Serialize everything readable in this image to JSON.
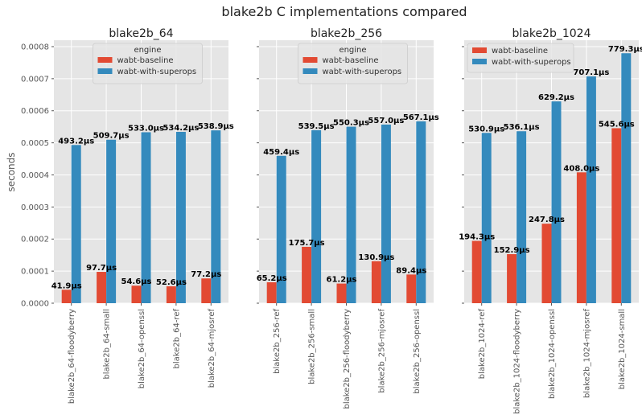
{
  "figure": {
    "suptitle": "blake2b C implementations compared",
    "ylabel": "seconds",
    "colors": {
      "wabt-baseline": "#E24A33",
      "wabt-with-superops": "#348ABD",
      "bg": "#E5E5E5",
      "grid": "#FFFFFF"
    }
  },
  "chart_data": [
    {
      "type": "bar",
      "title": "blake2b_64",
      "ylim": [
        0,
        0.00082
      ],
      "yticks": [
        "0.0000",
        "0.0001",
        "0.0002",
        "0.0003",
        "0.0004",
        "0.0005",
        "0.0006",
        "0.0007",
        "0.0008"
      ],
      "legend": {
        "title": "engine",
        "placement": "top-center"
      },
      "categories": [
        "blake2b_64-floodyberry",
        "blake2b_64-small",
        "blake2b_64-openssl",
        "blake2b_64-ref",
        "blake2b_64-mjosref"
      ],
      "series": [
        {
          "name": "wabt-baseline",
          "values": [
            4.19e-05,
            9.77e-05,
            5.46e-05,
            5.26e-05,
            7.72e-05
          ],
          "labels": [
            "41.9µs",
            "97.7µs",
            "54.6µs",
            "52.6µs",
            "77.2µs"
          ]
        },
        {
          "name": "wabt-with-superops",
          "values": [
            0.0004932,
            0.0005097,
            0.000533,
            0.0005342,
            0.0005389
          ],
          "labels": [
            "493.2µs",
            "509.7µs",
            "533.0µs",
            "534.2µs",
            "538.9µs"
          ]
        }
      ],
      "grid": true
    },
    {
      "type": "bar",
      "title": "blake2b_256",
      "ylim": [
        0,
        0.00082
      ],
      "legend": {
        "title": "engine",
        "placement": "top-center"
      },
      "categories": [
        "blake2b_256-ref",
        "blake2b_256-small",
        "blake2b_256-floodyberry",
        "blake2b_256-mjosref",
        "blake2b_256-openssl"
      ],
      "series": [
        {
          "name": "wabt-baseline",
          "values": [
            6.52e-05,
            0.0001757,
            6.12e-05,
            0.0001309,
            8.94e-05
          ],
          "labels": [
            "65.2µs",
            "175.7µs",
            "61.2µs",
            "130.9µs",
            "89.4µs"
          ]
        },
        {
          "name": "wabt-with-superops",
          "values": [
            0.0004594,
            0.0005395,
            0.0005503,
            0.000557,
            0.0005671
          ],
          "labels": [
            "459.4µs",
            "539.5µs",
            "550.3µs",
            "557.0µs",
            "567.1µs"
          ]
        }
      ],
      "grid": true
    },
    {
      "type": "bar",
      "title": "blake2b_1024",
      "ylim": [
        0,
        0.00082
      ],
      "legend": {
        "title": "",
        "placement": "top-left"
      },
      "categories": [
        "blake2b_1024-ref",
        "blake2b_1024-floodyberry",
        "blake2b_1024-openssl",
        "blake2b_1024-mjosref",
        "blake2b_1024-small"
      ],
      "series": [
        {
          "name": "wabt-baseline",
          "values": [
            0.0001943,
            0.0001529,
            0.0002478,
            0.000408,
            0.0005456
          ],
          "labels": [
            "194.3µs",
            "152.9µs",
            "247.8µs",
            "408.0µs",
            "545.6µs"
          ]
        },
        {
          "name": "wabt-with-superops",
          "values": [
            0.0005309,
            0.0005361,
            0.0006292,
            0.0007071,
            0.0007793
          ],
          "labels": [
            "530.9µs",
            "536.1µs",
            "629.2µs",
            "707.1µs",
            "779.3µs"
          ]
        }
      ],
      "grid": true
    }
  ]
}
